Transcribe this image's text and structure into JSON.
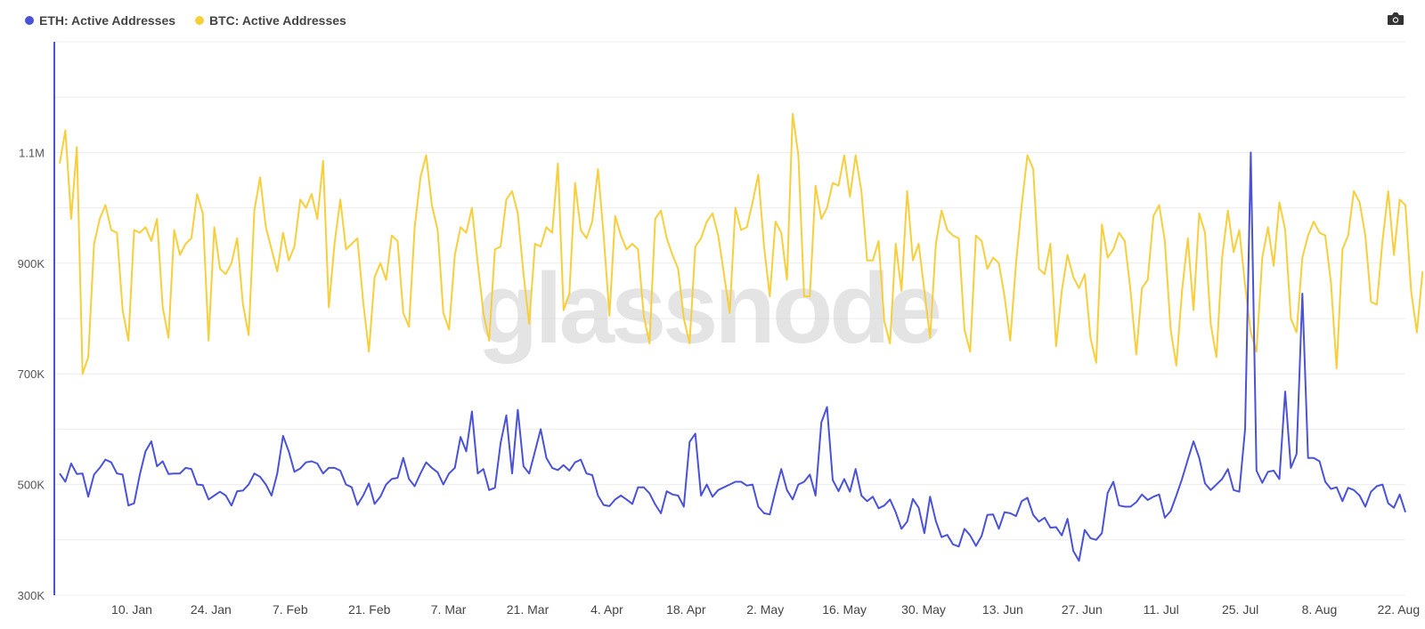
{
  "legend": {
    "eth_label": "ETH: Active Addresses",
    "btc_label": "BTC: Active Addresses"
  },
  "colors": {
    "eth": "#4a52d6",
    "btc": "#f7cf3c",
    "axis": "#4a52d6",
    "grid": "#ececec"
  },
  "icons": {
    "camera": "camera-icon"
  },
  "watermark": "glassnode",
  "chart_data": {
    "type": "line",
    "grid": true,
    "legend_position": "top-left",
    "y_axis": {
      "range": [
        300000,
        1300000
      ],
      "tick_values": [
        300000,
        500000,
        700000,
        900000,
        1100000
      ],
      "tick_labels": [
        "300K",
        "500K",
        "700K",
        "900K",
        "1.1M"
      ]
    },
    "x_axis": {
      "tick_labels": [
        "10. Jan",
        "24. Jan",
        "7. Feb",
        "21. Feb",
        "7. Mar",
        "21. Mar",
        "4. Apr",
        "18. Apr",
        "2. May",
        "16. May",
        "30. May",
        "13. Jun",
        "27. Jun",
        "11. Jul",
        "25. Jul",
        "8. Aug",
        "22. Aug"
      ]
    },
    "series": [
      {
        "name": "ETH: Active Addresses",
        "color": "#4a52d6",
        "values": [
          520,
          505,
          538,
          519,
          520,
          478,
          518,
          530,
          545,
          540,
          520,
          518,
          462,
          466,
          518,
          560,
          578,
          533,
          542,
          519,
          520,
          520,
          530,
          528,
          500,
          499,
          473,
          480,
          487,
          480,
          462,
          488,
          489,
          500,
          520,
          514,
          500,
          480,
          520,
          588,
          560,
          523,
          529,
          540,
          542,
          538,
          520,
          530,
          530,
          525,
          500,
          495,
          463,
          480,
          502,
          465,
          478,
          500,
          510,
          512,
          548,
          510,
          497,
          520,
          540,
          530,
          522,
          500,
          520,
          530,
          586,
          560,
          632,
          520,
          528,
          490,
          494,
          575,
          625,
          520,
          635,
          533,
          520,
          560,
          600,
          548,
          530,
          526,
          535,
          525,
          540,
          545,
          520,
          517,
          480,
          463,
          461,
          473,
          480,
          473,
          465,
          495,
          495,
          484,
          464,
          448,
          488,
          482,
          480,
          460,
          577,
          592,
          480,
          500,
          478,
          490,
          495,
          500,
          505,
          505,
          498,
          500,
          460,
          448,
          446,
          488,
          528,
          490,
          473,
          500,
          505,
          518,
          480,
          612,
          640,
          508,
          488,
          510,
          487,
          528,
          480,
          470,
          478,
          457,
          462,
          473,
          450,
          420,
          433,
          474,
          458,
          412,
          478,
          434,
          405,
          409,
          392,
          388,
          420,
          408,
          389,
          407,
          445,
          446,
          420,
          450,
          448,
          443,
          470,
          476,
          445,
          433,
          440,
          422,
          423,
          408,
          438,
          380,
          362,
          418,
          403,
          400,
          412,
          485,
          505,
          462,
          460,
          460,
          468,
          482,
          472,
          478,
          482,
          440,
          452,
          480,
          510,
          545,
          578,
          548,
          502,
          490,
          500,
          510,
          528,
          490,
          487,
          600,
          1100,
          525,
          503,
          523,
          525,
          510,
          668,
          530,
          555,
          845,
          548,
          548,
          542,
          505,
          492,
          495,
          470,
          494,
          490,
          480,
          460,
          487,
          497,
          500,
          466,
          458,
          482,
          450
        ]
      },
      {
        "name": "BTC: Active Addresses",
        "color": "#f7cf3c",
        "values": [
          1080,
          1140,
          980,
          1110,
          700,
          730,
          935,
          980,
          1005,
          960,
          955,
          815,
          760,
          960,
          955,
          965,
          940,
          980,
          820,
          765,
          960,
          915,
          935,
          945,
          1025,
          990,
          760,
          965,
          890,
          880,
          900,
          945,
          825,
          770,
          995,
          1055,
          965,
          925,
          885,
          955,
          905,
          930,
          1015,
          1000,
          1025,
          980,
          1085,
          820,
          935,
          1015,
          925,
          935,
          945,
          830,
          740,
          875,
          900,
          870,
          950,
          940,
          810,
          785,
          965,
          1055,
          1095,
          1005,
          960,
          810,
          780,
          915,
          965,
          955,
          1000,
          900,
          810,
          760,
          925,
          930,
          1015,
          1030,
          990,
          880,
          790,
          935,
          930,
          965,
          955,
          1080,
          815,
          845,
          1045,
          960,
          945,
          975,
          1070,
          950,
          805,
          985,
          950,
          925,
          935,
          925,
          805,
          755,
          980,
          995,
          945,
          915,
          890,
          800,
          755,
          930,
          945,
          975,
          990,
          950,
          880,
          810,
          1000,
          960,
          965,
          1010,
          1060,
          930,
          840,
          975,
          955,
          870,
          1170,
          1095,
          840,
          840,
          1040,
          980,
          1000,
          1045,
          1040,
          1095,
          1020,
          1095,
          1030,
          905,
          905,
          940,
          795,
          755,
          935,
          850,
          1030,
          905,
          935,
          850,
          765,
          935,
          995,
          960,
          950,
          945,
          780,
          740,
          950,
          940,
          890,
          910,
          900,
          840,
          760,
          900,
          1005,
          1095,
          1070,
          890,
          880,
          935,
          750,
          850,
          915,
          875,
          855,
          880,
          765,
          720,
          970,
          910,
          925,
          955,
          940,
          850,
          735,
          855,
          870,
          985,
          1005,
          940,
          780,
          715,
          850,
          945,
          815,
          990,
          955,
          790,
          730,
          910,
          995,
          920,
          960,
          860,
          775,
          740,
          910,
          965,
          895,
          1010,
          960,
          800,
          775,
          910,
          950,
          975,
          955,
          950,
          865,
          710,
          925,
          950,
          1030,
          1010,
          950,
          830,
          825,
          940,
          1030,
          915,
          1015,
          1005,
          850,
          775,
          885
        ]
      }
    ]
  }
}
